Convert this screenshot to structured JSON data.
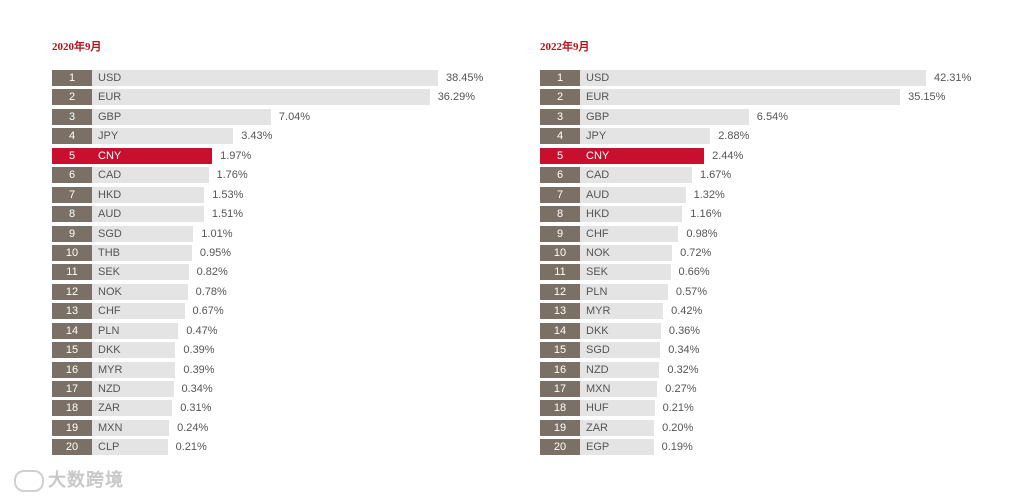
{
  "chart_data": [
    {
      "type": "bar",
      "title": "2020年9月",
      "ranks": [
        "1",
        "2",
        "3",
        "4",
        "5",
        "6",
        "7",
        "8",
        "9",
        "10",
        "11",
        "12",
        "13",
        "14",
        "15",
        "16",
        "17",
        "18",
        "19",
        "20"
      ],
      "categories": [
        "USD",
        "EUR",
        "GBP",
        "JPY",
        "CNY",
        "CAD",
        "HKD",
        "AUD",
        "SGD",
        "THB",
        "SEK",
        "NOK",
        "CHF",
        "PLN",
        "DKK",
        "MYR",
        "NZD",
        "ZAR",
        "MXN",
        "CLP"
      ],
      "values": [
        38.45,
        36.29,
        7.04,
        3.43,
        1.97,
        1.76,
        1.53,
        1.51,
        1.01,
        0.95,
        0.82,
        0.78,
        0.67,
        0.47,
        0.39,
        0.39,
        0.34,
        0.31,
        0.24,
        0.21
      ],
      "labels": [
        "38.45%",
        "36.29%",
        "7.04%",
        "3.43%",
        "1.97%",
        "1.76%",
        "1.53%",
        "1.51%",
        "1.01%",
        "0.95%",
        "0.82%",
        "0.78%",
        "0.67%",
        "0.47%",
        "0.39%",
        "0.39%",
        "0.34%",
        "0.31%",
        "0.24%",
        "0.21%"
      ],
      "highlight": "CNY"
    },
    {
      "type": "bar",
      "title": "2022年9月",
      "ranks": [
        "1",
        "2",
        "3",
        "4",
        "5",
        "6",
        "7",
        "8",
        "9",
        "10",
        "11",
        "12",
        "13",
        "14",
        "15",
        "16",
        "17",
        "18",
        "19",
        "20"
      ],
      "categories": [
        "USD",
        "EUR",
        "GBP",
        "JPY",
        "CNY",
        "CAD",
        "AUD",
        "HKD",
        "CHF",
        "NOK",
        "SEK",
        "PLN",
        "MYR",
        "DKK",
        "SGD",
        "NZD",
        "MXN",
        "HUF",
        "ZAR",
        "EGP"
      ],
      "values": [
        42.31,
        35.15,
        6.54,
        2.88,
        2.44,
        1.67,
        1.32,
        1.16,
        0.98,
        0.72,
        0.66,
        0.57,
        0.42,
        0.36,
        0.34,
        0.32,
        0.27,
        0.21,
        0.2,
        0.19
      ],
      "labels": [
        "42.31%",
        "35.15%",
        "6.54%",
        "2.88%",
        "2.44%",
        "1.67%",
        "1.32%",
        "1.16%",
        "0.98%",
        "0.72%",
        "0.66%",
        "0.57%",
        "0.42%",
        "0.36%",
        "0.34%",
        "0.32%",
        "0.27%",
        "0.21%",
        "0.20%",
        "0.19%"
      ],
      "highlight": "CNY"
    }
  ],
  "colors": {
    "bar": "#e4e4e4",
    "rank_box": "#7a7065",
    "highlight": "#c8102e",
    "title": "#b5121b"
  },
  "watermark": "大数跨境"
}
